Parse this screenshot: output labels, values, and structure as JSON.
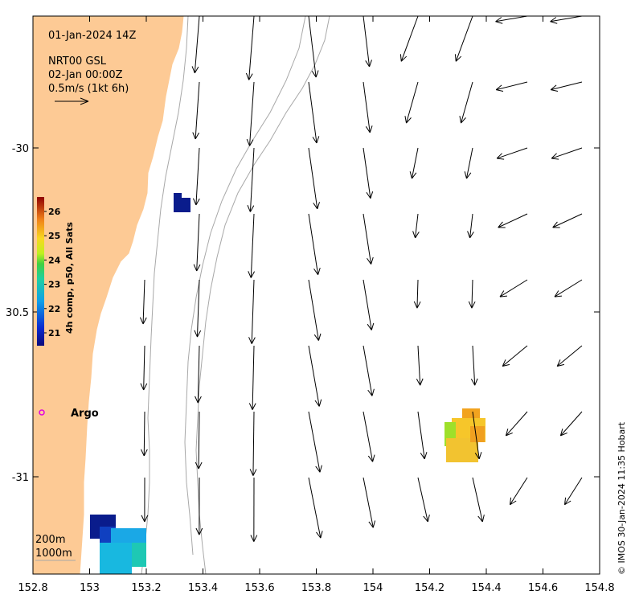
{
  "map": {
    "timestamp": "01-Jan-2024 14Z",
    "product": "NRT00 GSL",
    "valid_time": "02-Jan 00:00Z",
    "scale_label": "0.5m/s (1kt 6h)",
    "credit": "© IMOS 30-Jan-2024 11:35 Hobart",
    "float_label": "Argo",
    "contour_labels": [
      "200m",
      "1000m"
    ],
    "x_ticks": [
      "152.8",
      "153",
      "153.2",
      "153.4",
      "153.6",
      "153.8",
      "154",
      "154.2",
      "154.4",
      "154.6",
      "154.8"
    ],
    "y_ticks": [
      "-30",
      "30.5",
      "-31"
    ],
    "colorbar": {
      "title": "4h comp, p50, All Sats",
      "ticks": [
        "26",
        "25",
        "24",
        "23",
        "22",
        "21"
      ]
    },
    "colors": {
      "land": "#fdca95",
      "float_marker": "#e000e0",
      "contour": "#a8a8a8"
    }
  }
}
